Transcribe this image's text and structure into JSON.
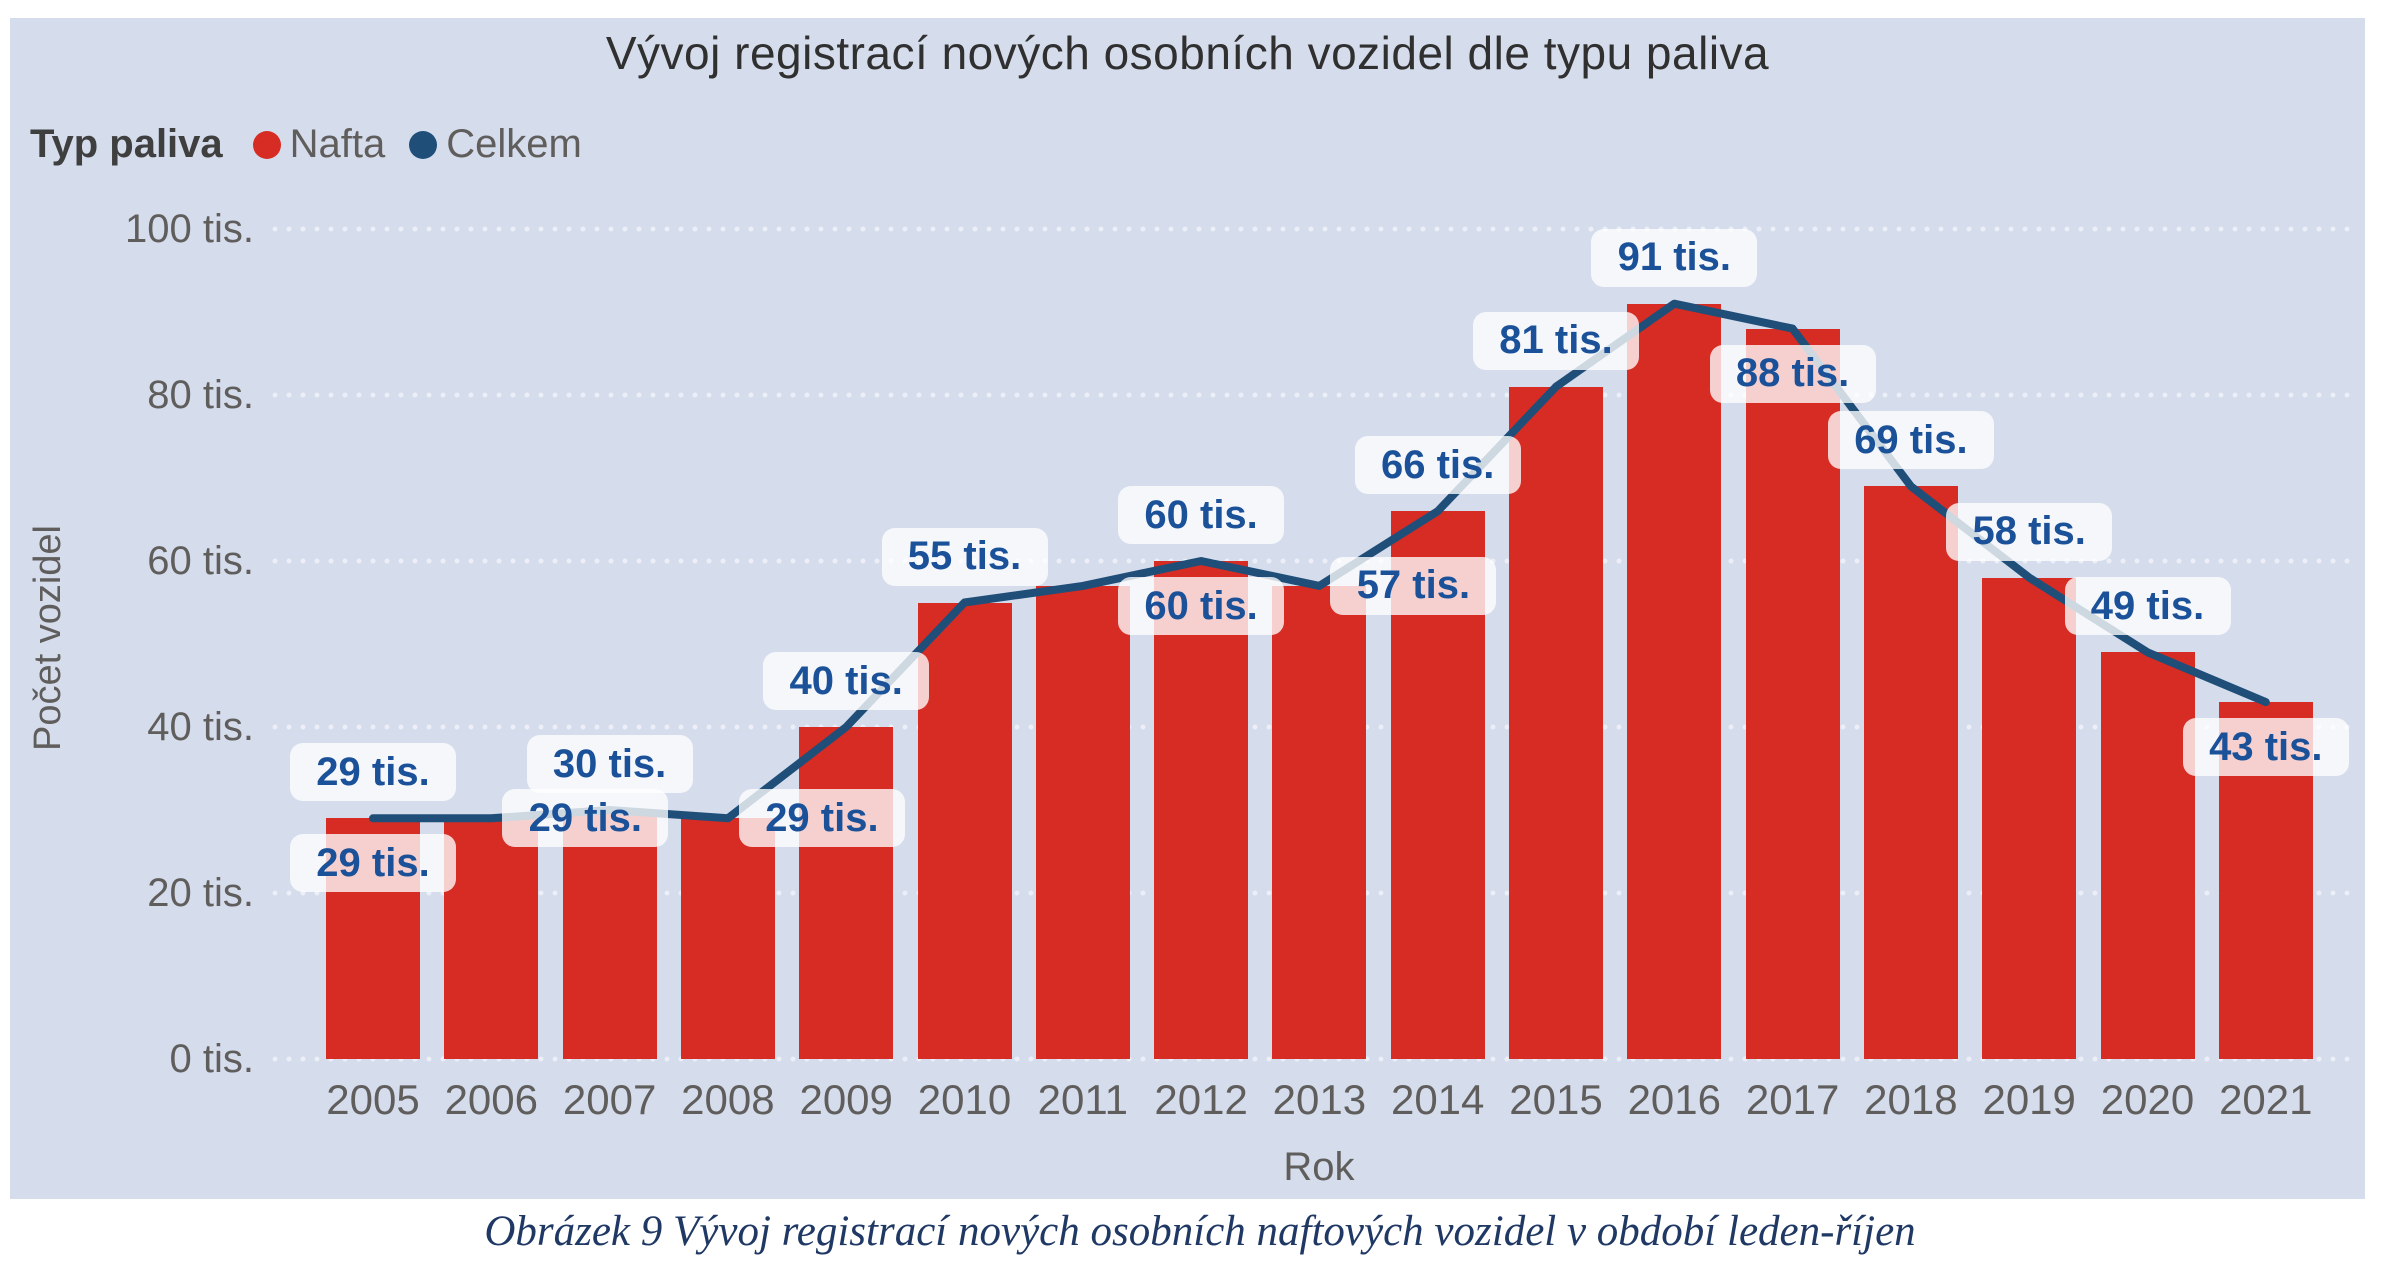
{
  "figure": {
    "caption": "Obrázek 9 Vývoj registrací nových osobních naftových vozidel v období leden-říjen"
  },
  "chart": {
    "title": "Vývoj registrací nových osobních vozidel dle typu paliva",
    "legend": {
      "title": "Typ paliva",
      "items": [
        {
          "label": "Nafta",
          "color": "#d62c23"
        },
        {
          "label": "Celkem",
          "color": "#1f4e79"
        }
      ]
    },
    "y_axis": {
      "title": "Počet vozidel"
    },
    "x_axis": {
      "title": "Rok"
    }
  },
  "chart_data": {
    "type": "combo-bar-line",
    "title": "Vývoj registrací nových osobních vozidel dle typu paliva",
    "xlabel": "Rok",
    "ylabel": "Počet vozidel",
    "ylim": [
      0,
      100
    ],
    "grid": "dotted-horizontal",
    "legend_position": "top-left",
    "unit": "tis.",
    "categories": [
      "2005",
      "2006",
      "2007",
      "2008",
      "2009",
      "2010",
      "2011",
      "2012",
      "2013",
      "2014",
      "2015",
      "2016",
      "2017",
      "2018",
      "2019",
      "2020",
      "2021"
    ],
    "series": [
      {
        "name": "Nafta",
        "type": "bar",
        "color": "#d62c23",
        "values": [
          29,
          29,
          30,
          29,
          40,
          55,
          57,
          60,
          57,
          66,
          81,
          91,
          88,
          69,
          58,
          49,
          43
        ]
      },
      {
        "name": "Celkem",
        "type": "line",
        "color": "#1f4e79",
        "values": [
          29,
          29,
          30,
          29,
          40,
          55,
          57,
          60,
          57,
          66,
          81,
          91,
          88,
          69,
          58,
          49,
          43
        ]
      }
    ],
    "y_ticks": [
      {
        "label": "0 tis.",
        "value": 0
      },
      {
        "label": "20 tis.",
        "value": 20
      },
      {
        "label": "40 tis.",
        "value": 40
      },
      {
        "label": "60 tis.",
        "value": 60
      },
      {
        "label": "80 tis.",
        "value": 80
      },
      {
        "label": "100 tis.",
        "value": 100
      }
    ],
    "data_labels": [
      {
        "year": "2005",
        "text": "29 tis.",
        "placement": "above"
      },
      {
        "year": "2005",
        "text": "29 tis.",
        "placement": "below"
      },
      {
        "year": "2006",
        "text": "29 tis.",
        "placement": "right"
      },
      {
        "year": "2007",
        "text": "30 tis.",
        "placement": "above"
      },
      {
        "year": "2008",
        "text": "29 tis.",
        "placement": "right"
      },
      {
        "year": "2009",
        "text": "40 tis.",
        "placement": "above"
      },
      {
        "year": "2010",
        "text": "55 tis.",
        "placement": "above"
      },
      {
        "year": "2012",
        "text": "60 tis.",
        "placement": "above"
      },
      {
        "year": "2012",
        "text": "60 tis.",
        "placement": "below"
      },
      {
        "year": "2013",
        "text": "57 tis.",
        "placement": "right"
      },
      {
        "year": "2014",
        "text": "66 tis.",
        "placement": "above"
      },
      {
        "year": "2015",
        "text": "81 tis.",
        "placement": "above"
      },
      {
        "year": "2016",
        "text": "91 tis.",
        "placement": "above"
      },
      {
        "year": "2017",
        "text": "88 tis.",
        "placement": "below"
      },
      {
        "year": "2018",
        "text": "69 tis.",
        "placement": "above"
      },
      {
        "year": "2019",
        "text": "58 tis.",
        "placement": "above"
      },
      {
        "year": "2020",
        "text": "49 tis.",
        "placement": "above"
      },
      {
        "year": "2021",
        "text": "43 tis.",
        "placement": "below"
      }
    ]
  },
  "colors": {
    "page_bg": "#ffffff",
    "panel_bg": "#d5dcec",
    "bar": "#d62c23",
    "line": "#1f4e79",
    "label_text": "#1b5198",
    "axis_text": "#605e5c",
    "title_text": "#303030",
    "legend_title_text": "#3f3f3f",
    "caption_text": "#1f3864",
    "pill_bg": "rgba(255,255,255,0.78)",
    "gridline": "#eceff7"
  }
}
